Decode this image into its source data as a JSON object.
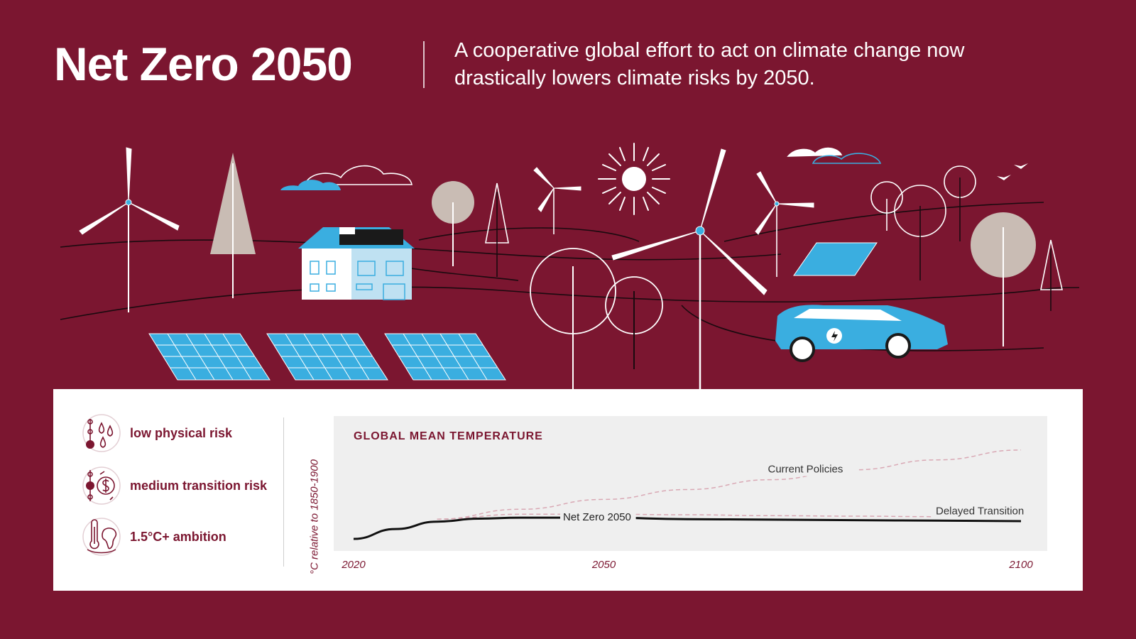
{
  "header": {
    "title": "Net Zero 2050",
    "subtitle_line1": "A cooperative global effort to act on climate change now",
    "subtitle_line2": "drastically lowers climate risks by 2050."
  },
  "scene": {
    "illustration_elements": [
      "wind-turbine",
      "solar-panel",
      "house",
      "tree",
      "sun",
      "cloud",
      "electric-car",
      "bird"
    ]
  },
  "legend": {
    "items": [
      {
        "label": "low physical risk",
        "icon": "water-drops-icon"
      },
      {
        "label": "medium transition risk",
        "icon": "dollar-cycle-icon"
      },
      {
        "label": "1.5°C+ ambition",
        "icon": "thermometer-map-icon"
      }
    ]
  },
  "colors": {
    "background": "#7b1630",
    "accent_blue": "#3aaee0",
    "panel": "#ffffff",
    "chart_bg": "#efefef",
    "net_zero_line": "#111111",
    "scenario_line": "#d9a8b4"
  },
  "chart_data": {
    "type": "line",
    "title": "GLOBAL MEAN TEMPERATURE",
    "ylabel": "°C relative to 1850-1900",
    "xlabel": "",
    "x_ticks": [
      "2020",
      "2050",
      "2100"
    ],
    "xlim": [
      2020,
      2100
    ],
    "ylim": [
      1.0,
      3.3
    ],
    "grid": false,
    "series": [
      {
        "name": "Current Policies",
        "style": "dashed",
        "color": "#d9a8b4",
        "x": [
          2030,
          2040,
          2050,
          2060,
          2070,
          2080,
          2090,
          2100
        ],
        "y": [
          1.5,
          1.7,
          1.9,
          2.1,
          2.3,
          2.5,
          2.7,
          2.9
        ]
      },
      {
        "name": "Delayed Transition",
        "style": "dashed",
        "color": "#d9a8b4",
        "x": [
          2030,
          2040,
          2050,
          2060,
          2070,
          2080,
          2090,
          2100
        ],
        "y": [
          1.5,
          1.6,
          1.6,
          1.59,
          1.57,
          1.56,
          1.55,
          1.54
        ]
      },
      {
        "name": "Net Zero 2050",
        "style": "solid",
        "color": "#111111",
        "x": [
          2020,
          2025,
          2030,
          2035,
          2040,
          2050,
          2060,
          2070,
          2080,
          2090,
          2100
        ],
        "y": [
          1.1,
          1.3,
          1.45,
          1.51,
          1.53,
          1.53,
          1.5,
          1.49,
          1.48,
          1.47,
          1.46
        ]
      }
    ]
  }
}
